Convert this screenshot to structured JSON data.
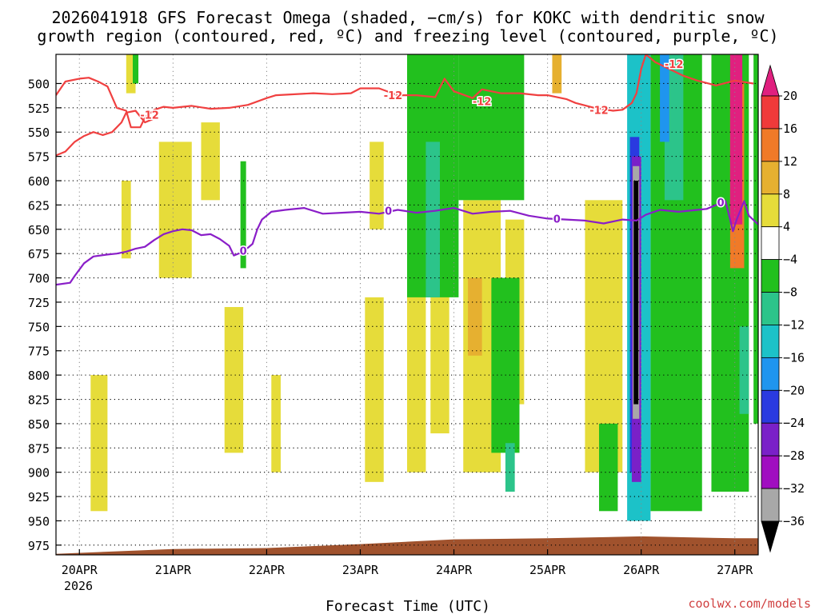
{
  "chart_data": {
    "type": "heatmap",
    "title_line1": "2026041918 GFS Forecast Omega (shaded, −cm/s) for KOKC with dendritic snow",
    "title_line2": "growth region (contoured, red, ºC) and freezing level (contoured, purple, ºC)",
    "xlabel": "Forecast Time (UTC)",
    "x_year": "2026",
    "x_ticks": [
      {
        "day": 0,
        "label": "20APR"
      },
      {
        "day": 1,
        "label": "21APR"
      },
      {
        "day": 2,
        "label": "22APR"
      },
      {
        "day": 3,
        "label": "23APR"
      },
      {
        "day": 4,
        "label": "24APR"
      },
      {
        "day": 5,
        "label": "25APR"
      },
      {
        "day": 6,
        "label": "26APR"
      },
      {
        "day": 7,
        "label": "27APR"
      }
    ],
    "x_range_days": [
      -0.25,
      7.25
    ],
    "y_ticks": [
      500,
      525,
      550,
      575,
      600,
      625,
      650,
      675,
      700,
      725,
      750,
      775,
      800,
      825,
      850,
      875,
      900,
      925,
      950,
      975
    ],
    "y_range_hpa": [
      470,
      985
    ],
    "grid": true,
    "colorbar": {
      "labels": [
        "20",
        "16",
        "12",
        "8",
        "4",
        "−4",
        "−8",
        "−12",
        "−16",
        "−20",
        "−24",
        "−28",
        "−32",
        "−36"
      ],
      "colors": [
        "#e0207f",
        "#f03a3a",
        "#f07a28",
        "#e6b030",
        "#e6dc3a",
        "#ffffff",
        "#22c01e",
        "#2cc48a",
        "#1cc2c8",
        "#1f95ee",
        "#2a3ae0",
        "#7a20c8",
        "#a00ec0",
        "#a8a8a8",
        "#000000"
      ]
    },
    "series": [
      {
        "name": "-12",
        "color": "#f04040",
        "points": [
          [
            -0.25,
            512
          ],
          [
            -0.15,
            498
          ],
          [
            0,
            495
          ],
          [
            0.1,
            494
          ],
          [
            0.2,
            498
          ],
          [
            0.3,
            503
          ],
          [
            0.4,
            525
          ],
          [
            0.5,
            528
          ],
          [
            0.55,
            545
          ],
          [
            0.65,
            545
          ],
          [
            0.7,
            535
          ],
          [
            0.8,
            527
          ],
          [
            0.9,
            524
          ],
          [
            1.0,
            525
          ],
          [
            1.2,
            523
          ],
          [
            1.4,
            526
          ],
          [
            1.6,
            525
          ],
          [
            1.8,
            522
          ],
          [
            2.0,
            515
          ],
          [
            2.1,
            512
          ],
          [
            2.5,
            510
          ],
          [
            2.7,
            511
          ],
          [
            2.9,
            510
          ],
          [
            3.0,
            505
          ],
          [
            3.2,
            505
          ],
          [
            3.4,
            512
          ],
          [
            3.6,
            512
          ],
          [
            3.8,
            514
          ],
          [
            3.9,
            495
          ],
          [
            4.0,
            508
          ],
          [
            4.2,
            515
          ],
          [
            4.3,
            506
          ],
          [
            4.5,
            510
          ],
          [
            4.7,
            510
          ],
          [
            4.9,
            512
          ],
          [
            5.0,
            512
          ],
          [
            5.2,
            516
          ],
          [
            5.3,
            520
          ],
          [
            5.5,
            525
          ],
          [
            5.7,
            528
          ],
          [
            5.8,
            527
          ],
          [
            5.9,
            520
          ],
          [
            5.95,
            510
          ],
          [
            6.0,
            485
          ],
          [
            6.05,
            470
          ],
          [
            6.15,
            478
          ],
          [
            6.3,
            485
          ],
          [
            6.45,
            492
          ],
          [
            6.6,
            497
          ],
          [
            6.8,
            502
          ],
          [
            7.0,
            497
          ],
          [
            7.2,
            500
          ]
        ]
      },
      {
        "name": "-12",
        "color": "#f04040",
        "points": [
          [
            -0.25,
            574
          ],
          [
            -0.15,
            570
          ],
          [
            -0.05,
            560
          ],
          [
            0.05,
            554
          ],
          [
            0.15,
            550
          ],
          [
            0.25,
            553
          ],
          [
            0.35,
            550
          ],
          [
            0.45,
            540
          ],
          [
            0.5,
            530
          ],
          [
            0.6,
            528
          ],
          [
            0.7,
            540
          ],
          [
            0.8,
            536
          ]
        ]
      },
      {
        "name": "0",
        "color": "#8a1ec8",
        "points": [
          [
            -0.25,
            707
          ],
          [
            -0.1,
            705
          ],
          [
            -0.05,
            698
          ],
          [
            0.05,
            685
          ],
          [
            0.15,
            678
          ],
          [
            0.3,
            676
          ],
          [
            0.4,
            675
          ],
          [
            0.5,
            673
          ],
          [
            0.6,
            670
          ],
          [
            0.7,
            668
          ],
          [
            0.8,
            661
          ],
          [
            0.9,
            655
          ],
          [
            1.0,
            652
          ],
          [
            1.1,
            650
          ],
          [
            1.2,
            651
          ],
          [
            1.3,
            656
          ],
          [
            1.4,
            655
          ],
          [
            1.5,
            660
          ],
          [
            1.6,
            667
          ],
          [
            1.65,
            677
          ],
          [
            1.75,
            673
          ],
          [
            1.85,
            665
          ],
          [
            1.9,
            650
          ],
          [
            1.95,
            640
          ],
          [
            2.05,
            632
          ],
          [
            2.2,
            630
          ],
          [
            2.4,
            628
          ],
          [
            2.6,
            634
          ],
          [
            2.8,
            633
          ],
          [
            3.0,
            632
          ],
          [
            3.2,
            634
          ],
          [
            3.4,
            630
          ],
          [
            3.6,
            633
          ],
          [
            3.8,
            631
          ],
          [
            4.0,
            628
          ],
          [
            4.2,
            634
          ],
          [
            4.4,
            632
          ],
          [
            4.6,
            631
          ],
          [
            4.8,
            636
          ],
          [
            5.0,
            639
          ],
          [
            5.2,
            640
          ],
          [
            5.4,
            641
          ],
          [
            5.6,
            644
          ],
          [
            5.8,
            640
          ],
          [
            5.95,
            641
          ],
          [
            6.05,
            635
          ],
          [
            6.2,
            630
          ],
          [
            6.4,
            632
          ],
          [
            6.6,
            630
          ],
          [
            6.7,
            629
          ],
          [
            6.8,
            625
          ],
          [
            6.9,
            621
          ],
          [
            6.95,
            640
          ],
          [
            6.98,
            652
          ],
          [
            7.02,
            640
          ],
          [
            7.1,
            621
          ],
          [
            7.15,
            636
          ],
          [
            7.25,
            645
          ]
        ]
      }
    ],
    "contour_labels": [
      {
        "day": 3.35,
        "hpa": 512,
        "text": "-12",
        "color": "#f04040"
      },
      {
        "day": 4.3,
        "hpa": 518,
        "text": "-12",
        "color": "#f04040"
      },
      {
        "day": 5.55,
        "hpa": 527,
        "text": "-12",
        "color": "#f04040"
      },
      {
        "day": 6.35,
        "hpa": 480,
        "text": "-12",
        "color": "#f04040"
      },
      {
        "day": 0.75,
        "hpa": 532,
        "text": "-12",
        "color": "#f04040"
      },
      {
        "day": 1.75,
        "hpa": 672,
        "text": "0",
        "color": "#8a1ec8"
      },
      {
        "day": 3.3,
        "hpa": 631,
        "text": "0",
        "color": "#8a1ec8"
      },
      {
        "day": 5.1,
        "hpa": 639,
        "text": "0",
        "color": "#8a1ec8"
      },
      {
        "day": 6.85,
        "hpa": 622,
        "text": "0",
        "color": "#8a1ec8"
      }
    ],
    "shading": [
      {
        "value": 6,
        "day0": 0.12,
        "day1": 0.3,
        "hpa0": 800,
        "hpa1": 940
      },
      {
        "value": 6,
        "day0": 0.5,
        "day1": 0.6,
        "hpa0": 470,
        "hpa1": 510
      },
      {
        "value": 6,
        "day0": 0.45,
        "day1": 0.55,
        "hpa0": 600,
        "hpa1": 680
      },
      {
        "value": 6,
        "day0": 0.85,
        "day1": 1.2,
        "hpa0": 560,
        "hpa1": 700
      },
      {
        "value": 6,
        "day0": 1.3,
        "day1": 1.5,
        "hpa0": 540,
        "hpa1": 620
      },
      {
        "value": 6,
        "day0": 1.55,
        "day1": 1.75,
        "hpa0": 730,
        "hpa1": 880
      },
      {
        "value": 6,
        "day0": 2.05,
        "day1": 2.15,
        "hpa0": 800,
        "hpa1": 900
      },
      {
        "value": 6,
        "day0": 3.05,
        "day1": 3.25,
        "hpa0": 720,
        "hpa1": 910
      },
      {
        "value": 6,
        "day0": 3.1,
        "day1": 3.25,
        "hpa0": 560,
        "hpa1": 650
      },
      {
        "value": 6,
        "day0": 3.5,
        "day1": 3.7,
        "hpa0": 640,
        "hpa1": 900
      },
      {
        "value": 6,
        "day0": 3.75,
        "day1": 3.95,
        "hpa0": 620,
        "hpa1": 860
      },
      {
        "value": 6,
        "day0": 4.1,
        "day1": 4.5,
        "hpa0": 620,
        "hpa1": 900
      },
      {
        "value": 6,
        "day0": 4.55,
        "day1": 4.75,
        "hpa0": 640,
        "hpa1": 830
      },
      {
        "value": 6,
        "day0": 5.4,
        "day1": 5.8,
        "hpa0": 620,
        "hpa1": 900
      },
      {
        "value": 6,
        "day0": 6.1,
        "day1": 6.22,
        "hpa0": 470,
        "hpa1": 560
      },
      {
        "value": 10,
        "day0": 4.15,
        "day1": 4.3,
        "hpa0": 700,
        "hpa1": 780
      },
      {
        "value": 10,
        "day0": 5.05,
        "day1": 5.15,
        "hpa0": 470,
        "hpa1": 510
      },
      {
        "value": -6,
        "day0": 0.57,
        "day1": 0.63,
        "hpa0": 470,
        "hpa1": 500
      },
      {
        "value": -6,
        "day0": 1.72,
        "day1": 1.78,
        "hpa0": 580,
        "hpa1": 690
      },
      {
        "value": -6,
        "day0": 3.5,
        "day1": 4.05,
        "hpa0": 470,
        "hpa1": 720
      },
      {
        "value": -6,
        "day0": 4.05,
        "day1": 4.75,
        "hpa0": 470,
        "hpa1": 620
      },
      {
        "value": -6,
        "day0": 4.4,
        "day1": 4.7,
        "hpa0": 700,
        "hpa1": 880
      },
      {
        "value": -6,
        "day0": 5.55,
        "day1": 5.75,
        "hpa0": 850,
        "hpa1": 940
      },
      {
        "value": -6,
        "day0": 6.1,
        "day1": 6.65,
        "hpa0": 470,
        "hpa1": 940
      },
      {
        "value": -6,
        "day0": 6.75,
        "day1": 7.15,
        "hpa0": 470,
        "hpa1": 920
      },
      {
        "value": -6,
        "day0": 7.2,
        "day1": 7.25,
        "hpa0": 470,
        "hpa1": 850
      },
      {
        "value": -10,
        "day0": 3.7,
        "day1": 3.85,
        "hpa0": 560,
        "hpa1": 720
      },
      {
        "value": -10,
        "day0": 4.55,
        "day1": 4.65,
        "hpa0": 870,
        "hpa1": 920
      },
      {
        "value": -10,
        "day0": 6.25,
        "day1": 6.45,
        "hpa0": 470,
        "hpa1": 620
      },
      {
        "value": -10,
        "day0": 7.05,
        "day1": 7.15,
        "hpa0": 750,
        "hpa1": 840
      },
      {
        "value": -14,
        "day0": 5.85,
        "day1": 6.1,
        "hpa0": 470,
        "hpa1": 950
      },
      {
        "value": -18,
        "day0": 6.2,
        "day1": 6.3,
        "hpa0": 470,
        "hpa1": 560
      },
      {
        "value": -22,
        "day0": 5.88,
        "day1": 5.98,
        "hpa0": 555,
        "hpa1": 900
      },
      {
        "value": -26,
        "day0": 5.9,
        "day1": 6.0,
        "hpa0": 575,
        "hpa1": 910
      },
      {
        "value": -34,
        "day0": 5.91,
        "day1": 5.98,
        "hpa0": 585,
        "hpa1": 845
      },
      {
        "value": -38,
        "day0": 5.92,
        "day1": 5.97,
        "hpa0": 600,
        "hpa1": 830
      },
      {
        "value": 14,
        "day0": 6.95,
        "day1": 7.1,
        "hpa0": 500,
        "hpa1": 690
      },
      {
        "value": 22,
        "day0": 6.95,
        "day1": 7.08,
        "hpa0": 470,
        "hpa1": 645
      }
    ],
    "terrain": {
      "color": "#a0522d",
      "points": [
        [
          -0.25,
          984
        ],
        [
          0.5,
          981
        ],
        [
          1.0,
          979
        ],
        [
          2.0,
          978
        ],
        [
          3.0,
          974
        ],
        [
          4.0,
          969
        ],
        [
          5.0,
          968
        ],
        [
          6.0,
          966
        ],
        [
          7.0,
          968
        ],
        [
          7.25,
          968
        ]
      ]
    }
  },
  "credit": "coolwx.com/models"
}
